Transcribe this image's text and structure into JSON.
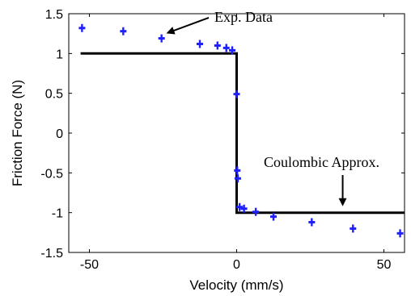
{
  "chart_data": {
    "type": "scatter",
    "xlabel": "Velocity (mm/s)",
    "ylabel": "Friction Force (N)",
    "xlim": [
      -57,
      57
    ],
    "ylim": [
      -1.5,
      1.5
    ],
    "x_ticks": [
      -50,
      0,
      50
    ],
    "x_tick_labels": [
      "-50",
      "0",
      "50"
    ],
    "y_ticks": [
      1.5,
      1,
      0.5,
      0,
      -0.5,
      -1,
      -1.5
    ],
    "y_tick_labels": [
      "1.5",
      "1",
      "0.5",
      "0",
      "-0.5",
      "-1",
      "-1.5"
    ],
    "grid": false,
    "series": [
      {
        "style": "markers",
        "color": "#1f1fff",
        "points": [
          {
            "x": -52.5,
            "y": 1.32
          },
          {
            "x": -38.5,
            "y": 1.28
          },
          {
            "x": -25.5,
            "y": 1.19
          },
          {
            "x": -12.5,
            "y": 1.12
          },
          {
            "x": -6.5,
            "y": 1.1
          },
          {
            "x": -3.5,
            "y": 1.07
          },
          {
            "x": -1.5,
            "y": 1.04
          },
          {
            "x": 0,
            "y": 0.49
          },
          {
            "x": 0.2,
            "y": -0.47
          },
          {
            "x": 0.4,
            "y": -0.57
          },
          {
            "x": 1.0,
            "y": -0.93
          },
          {
            "x": 2.5,
            "y": -0.95
          },
          {
            "x": 6.5,
            "y": -0.99
          },
          {
            "x": 12.5,
            "y": -1.05
          },
          {
            "x": 25.5,
            "y": -1.12
          },
          {
            "x": 39.5,
            "y": -1.2
          },
          {
            "x": 55.5,
            "y": -1.26
          }
        ]
      },
      {
        "style": "line",
        "color": "#000000",
        "points": [
          {
            "x": -53,
            "y": 1
          },
          {
            "x": 0,
            "y": 1
          },
          {
            "x": 0,
            "y": -1
          },
          {
            "x": 57,
            "y": -1
          }
        ]
      }
    ],
    "annotations": [
      {
        "text": "Exp. Data",
        "arrow_to": {
          "x": -25,
          "y": 1.22
        }
      },
      {
        "text": "Coulombic Approx.",
        "arrow_to": {
          "x": 36,
          "y": -0.98
        }
      }
    ]
  }
}
